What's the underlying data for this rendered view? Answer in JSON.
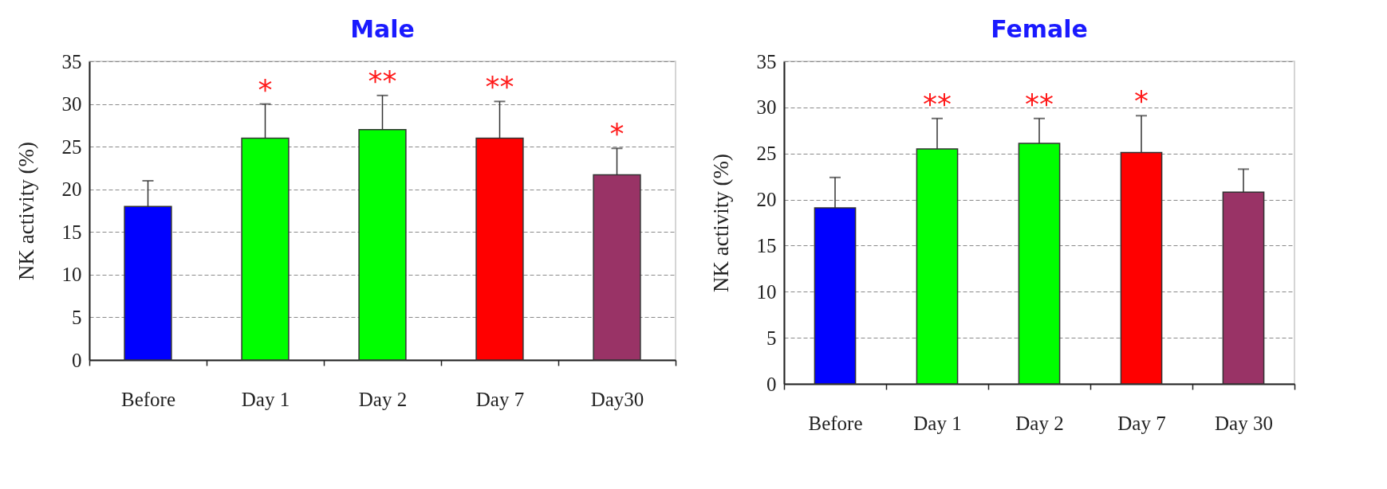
{
  "chart_data": [
    {
      "type": "bar",
      "title": "Male",
      "ylabel": "NK  activity (%)",
      "categories": [
        "Before",
        "Day 1",
        "Day 2",
        "Day 7",
        "Day30"
      ],
      "values": [
        18,
        26,
        27,
        26,
        21.7
      ],
      "colors": [
        "#0000ff",
        "#00ff00",
        "#00ff00",
        "#ff0000",
        "#993366"
      ],
      "errors": [
        [
          18,
          21
        ],
        [
          26,
          30
        ],
        [
          27,
          31
        ],
        [
          26,
          30.3
        ],
        [
          21.7,
          24.8
        ]
      ],
      "ylim": [
        0,
        35
      ],
      "yticks": [
        0,
        5,
        10,
        15,
        20,
        25,
        30,
        35
      ],
      "grid": "y",
      "annotations": [
        {
          "text": "*",
          "x": "Day 1",
          "y": 30
        },
        {
          "text": "**",
          "x": "Day 2",
          "y": 31
        },
        {
          "text": "**",
          "x": "Day 7",
          "y": 30.3
        },
        {
          "text": "*",
          "x": "Day30",
          "y": 24.8
        }
      ]
    },
    {
      "type": "bar",
      "title": "Female",
      "ylabel": "NK  activity (%)",
      "categories": [
        "Before",
        "Day 1",
        "Day 2",
        "Day 7",
        "Day 30"
      ],
      "values": [
        19.1,
        25.5,
        26.1,
        25.1,
        20.8
      ],
      "colors": [
        "#0000ff",
        "#00ff00",
        "#00ff00",
        "#ff0000",
        "#993366"
      ],
      "errors": [
        [
          19.1,
          22.4
        ],
        [
          25.5,
          28.8
        ],
        [
          26.1,
          28.8
        ],
        [
          25.1,
          29.1
        ],
        [
          20.8,
          23.3
        ]
      ],
      "ylim": [
        0,
        35
      ],
      "yticks": [
        0,
        5,
        10,
        15,
        20,
        25,
        30,
        35
      ],
      "grid": "y",
      "annotations": [
        {
          "text": "**",
          "x": "Day 1",
          "y": 28.8
        },
        {
          "text": "**",
          "x": "Day 2",
          "y": 28.8
        },
        {
          "text": "*",
          "x": "Day 7",
          "y": 29.1
        }
      ]
    }
  ]
}
